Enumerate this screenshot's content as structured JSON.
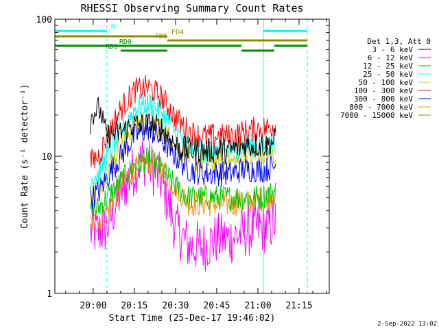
{
  "chart_data": {
    "type": "line",
    "title": "RHESSI Observing Summary Count Rates",
    "xlabel": "Start Time (25-Dec-17 19:46:02)",
    "ylabel": "Count Rate (s⁻¹ detector⁻¹)",
    "xlim": [
      "19:46:02",
      "21:26:00"
    ],
    "ylim": [
      1,
      100
    ],
    "yscale": "log",
    "grid": false,
    "legend_position": "right",
    "x_ticks": [
      "20:00",
      "20:15",
      "20:30",
      "20:45",
      "21:00",
      "21:15"
    ],
    "y_ticks": [
      "1",
      "10",
      "100"
    ],
    "legend_title": "Det 1,3, Att 0",
    "data_window": [
      "19:59:00",
      "21:06:30"
    ],
    "series": [
      {
        "name": "3 - 6 keV",
        "color": "#000000",
        "x": [
          "19:59",
          "20:00",
          "20:02",
          "20:03",
          "20:04",
          "20:05",
          "20:10",
          "20:15",
          "20:20",
          "20:25",
          "20:30",
          "20:35",
          "20:40",
          "20:45",
          "20:50",
          "20:55",
          "21:00",
          "21:03",
          "21:06"
        ],
        "y": [
          18,
          21,
          22,
          20,
          16,
          14,
          15,
          17,
          17,
          16,
          12,
          11,
          11,
          11,
          11,
          12,
          12,
          12,
          13
        ]
      },
      {
        "name": "6 - 12 keV",
        "color": "#ff00ff",
        "x": [
          "19:59",
          "20:02",
          "20:05",
          "20:10",
          "20:15",
          "20:18",
          "20:20",
          "20:25",
          "20:30",
          "20:35",
          "20:40",
          "20:45",
          "20:50",
          "20:55",
          "21:00",
          "21:03",
          "21:06"
        ],
        "y": [
          2.8,
          2.8,
          3.0,
          5.5,
          8.0,
          9.5,
          9.0,
          6.5,
          3.0,
          2.2,
          2.2,
          2.5,
          2.5,
          2.8,
          3.0,
          3.0,
          3.3
        ]
      },
      {
        "name": "12 - 25 keV",
        "color": "#00c800",
        "x": [
          "19:59",
          "20:02",
          "20:05",
          "20:10",
          "20:15",
          "20:20",
          "20:25",
          "20:30",
          "20:35",
          "20:40",
          "20:45",
          "20:50",
          "20:55",
          "21:00",
          "21:03",
          "21:06"
        ],
        "y": [
          4.0,
          4.2,
          5.0,
          6.5,
          8.5,
          9.5,
          8.0,
          6.0,
          5.0,
          5.0,
          5.0,
          5.0,
          5.0,
          5.0,
          5.2,
          5.5
        ]
      },
      {
        "name": "25 - 50 keV",
        "color": "#00ffff",
        "x": [
          "19:59",
          "20:02",
          "20:05",
          "20:10",
          "20:15",
          "20:20",
          "20:25",
          "20:30",
          "20:35",
          "20:40",
          "20:45",
          "20:50",
          "20:55",
          "21:00",
          "21:03",
          "21:06"
        ],
        "y": [
          7.0,
          7.5,
          10,
          15,
          22,
          25,
          21,
          15,
          12,
          11,
          11,
          11,
          12,
          12,
          12,
          13
        ]
      },
      {
        "name": "50 - 100 keV",
        "color": "#c8c800",
        "x": [
          "19:59",
          "20:02",
          "20:05",
          "20:10",
          "20:15",
          "20:20",
          "20:25",
          "20:30",
          "20:35",
          "20:40",
          "20:45",
          "20:50",
          "20:55",
          "21:00",
          "21:03",
          "21:06"
        ],
        "y": [
          5.5,
          6.0,
          8.0,
          12,
          17,
          19,
          16,
          12,
          10,
          9.0,
          9.0,
          9.0,
          9.5,
          10,
          10,
          10
        ]
      },
      {
        "name": "100 - 300 keV",
        "color": "#ff0000",
        "x": [
          "19:59",
          "20:02",
          "20:05",
          "20:10",
          "20:15",
          "20:20",
          "20:25",
          "20:30",
          "20:35",
          "20:40",
          "20:45",
          "20:50",
          "20:55",
          "21:00",
          "21:03",
          "21:06"
        ],
        "y": [
          9.0,
          10,
          14,
          22,
          30,
          32,
          27,
          19,
          15,
          14,
          14,
          14,
          15,
          16,
          16,
          17
        ]
      },
      {
        "name": "300 - 800 keV",
        "color": "#0000ff",
        "x": [
          "19:59",
          "20:02",
          "20:05",
          "20:10",
          "20:15",
          "20:20",
          "20:25",
          "20:30",
          "20:35",
          "20:40",
          "20:45",
          "20:50",
          "20:55",
          "21:00",
          "21:03",
          "21:06"
        ],
        "y": [
          5.0,
          5.5,
          7.0,
          10,
          14,
          16,
          13,
          10,
          8.0,
          7.5,
          7.5,
          7.5,
          8.0,
          8.0,
          8.0,
          8.5
        ]
      },
      {
        "name": "800 - 7000 keV",
        "color": "#ff8c00",
        "x": [
          "19:59",
          "20:02",
          "20:05",
          "20:10",
          "20:15",
          "20:20",
          "20:25",
          "20:30",
          "20:35",
          "20:40",
          "20:45",
          "20:50",
          "20:55",
          "21:00",
          "21:03",
          "21:06"
        ],
        "y": [
          3.2,
          3.4,
          4.0,
          6.0,
          8.0,
          9.0,
          8.0,
          6.0,
          4.5,
          4.5,
          4.5,
          4.5,
          4.6,
          4.8,
          5.0,
          5.2
        ]
      },
      {
        "name": "7000 - 15000 keV",
        "color": "#8c8c00",
        "x": [],
        "y": []
      }
    ],
    "status_bars": [
      {
        "label": "N",
        "color": "#00ffff",
        "y_level": 82,
        "segments": [
          [
            "19:46:02",
            "20:05"
          ],
          [
            "21:02",
            "21:18"
          ]
        ],
        "label_at": "20:06"
      },
      {
        "label": "FD4",
        "color": "#8c8c00",
        "y_level": 75,
        "segments": [
          [
            "19:46:02",
            "20:27"
          ]
        ],
        "label_at": "20:28"
      },
      {
        "label": "FD5",
        "color": "#8c8c00",
        "y_level": 70,
        "segments": [
          [
            "20:27",
            "21:18"
          ]
        ],
        "label_at": "20:22"
      },
      {
        "label": "RD0",
        "color": "#008c00",
        "y_level": 64,
        "segments": [
          [
            "19:46:02",
            "20:27"
          ],
          [
            "20:27",
            "20:54"
          ],
          [
            "21:06",
            "21:18"
          ]
        ],
        "label_at": "20:09"
      },
      {
        "label": "RD6",
        "color": "#008c00",
        "y_level": 59,
        "segments": [
          [
            "20:10",
            "20:27"
          ],
          [
            "20:54",
            "21:06"
          ]
        ],
        "label_at": "20:04"
      }
    ],
    "vertical_markers": [
      {
        "x": "19:46:02",
        "color": "#00ffff",
        "style": "solid"
      },
      {
        "x": "20:05",
        "color": "#00ffff",
        "style": "dashed"
      },
      {
        "x": "21:02",
        "color": "#00ffff",
        "style": "solid"
      },
      {
        "x": "21:18",
        "color": "#00ffff",
        "style": "dashed"
      }
    ]
  },
  "footer": {
    "date_stamp": "2-Sep-2022 13:02"
  }
}
